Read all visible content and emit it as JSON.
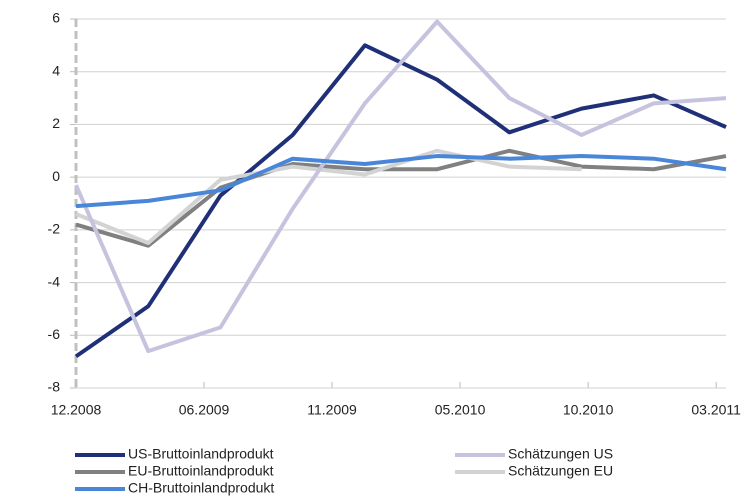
{
  "chart_data": {
    "type": "line",
    "x": [
      0,
      1,
      2,
      3,
      4,
      5,
      6,
      7,
      8,
      9
    ],
    "xlim": [
      0,
      9
    ],
    "xticks": [
      {
        "value": 0,
        "label": "12.2008"
      },
      {
        "value": 1.773,
        "label": "06.2009"
      },
      {
        "value": 3.545,
        "label": "11.2009"
      },
      {
        "value": 5.318,
        "label": "05.2010"
      },
      {
        "value": 7.091,
        "label": "10.2010"
      },
      {
        "value": 8.864,
        "label": "03.2011"
      }
    ],
    "ylim": [
      -8,
      6
    ],
    "yticks": [
      -8,
      -6,
      -4,
      -2,
      0,
      2,
      4,
      6
    ],
    "grid": true,
    "series": [
      {
        "name": "US-Bruttoinlandprodukt",
        "color": "#1f2f78",
        "values": [
          -6.8,
          -4.9,
          -0.7,
          1.6,
          5.0,
          3.7,
          1.7,
          2.6,
          3.1,
          1.9
        ]
      },
      {
        "name": "Schätzungen US",
        "color": "#c5c3dd",
        "values": [
          -0.3,
          -6.6,
          -5.7,
          -1.2,
          2.8,
          5.9,
          3.0,
          1.6,
          2.8,
          3.0
        ]
      },
      {
        "name": "EU-Bruttoinlandprodukt",
        "color": "#808080",
        "values": [
          -1.8,
          -2.6,
          -0.4,
          0.5,
          0.3,
          0.3,
          1.0,
          0.4,
          0.3,
          0.8
        ]
      },
      {
        "name": "Schätzungen EU",
        "color": "#d3d3d3",
        "values": [
          -1.4,
          -2.5,
          -0.1,
          0.4,
          0.1,
          1.0,
          0.4,
          0.3,
          null,
          null
        ]
      },
      {
        "name": "CH-Bruttoinlandprodukt",
        "color": "#4a86d8",
        "values": [
          -1.1,
          -0.9,
          -0.5,
          0.7,
          0.5,
          0.8,
          0.7,
          0.8,
          0.7,
          0.3
        ]
      }
    ]
  }
}
